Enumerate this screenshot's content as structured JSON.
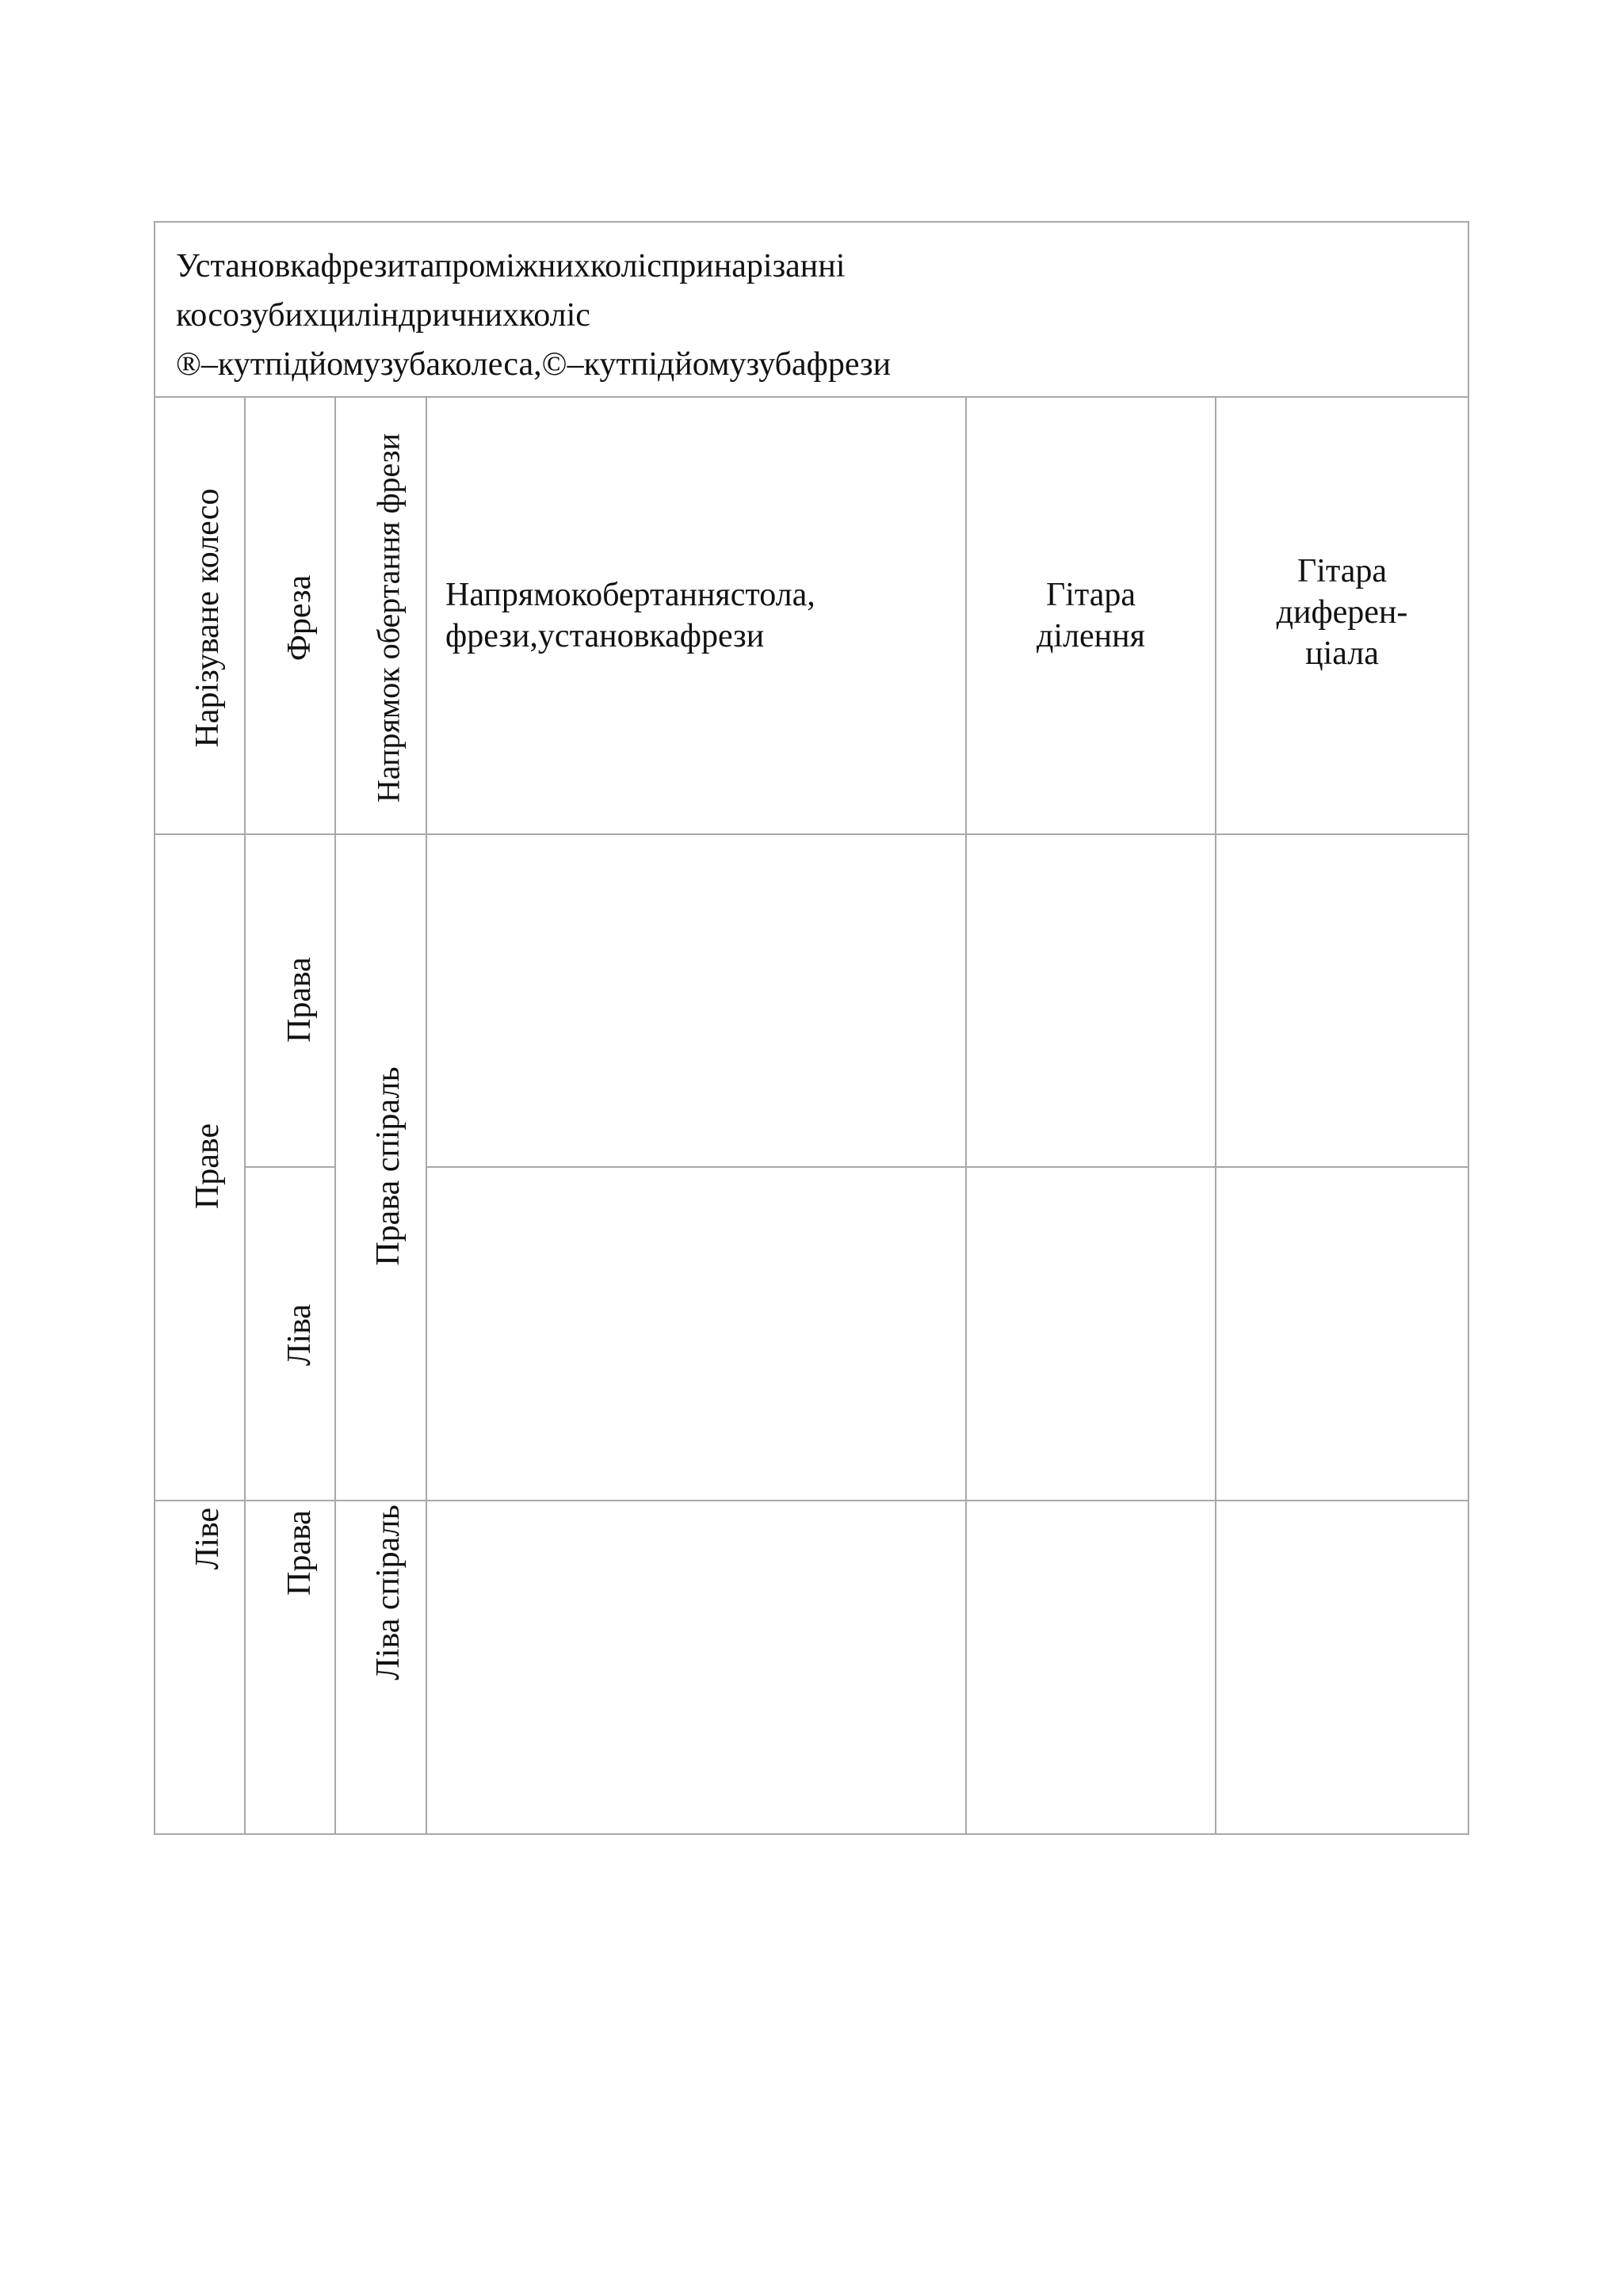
{
  "title": {
    "line1": "Установкафрезитапроміжнихколіспринарізанні",
    "line2": "косозубихциліндричнихколіс",
    "line3": "®–кутпідйомузубаколеса,©–кутпідйомузубафрези"
  },
  "header": {
    "wheel": "Нарізуване колесо",
    "cutter": "Фреза",
    "rotation": "Напрямок обертання фрези",
    "direction_line1": "Напрямокобертаннястола,",
    "direction_line2": "фрези,установкафрези",
    "division_line1": "Гітара",
    "division_line2": "ділення",
    "differential_line1": "Гітара",
    "differential_line2": "диферен-",
    "differential_line3": "ціала"
  },
  "rows": {
    "right_wheel": "Праве",
    "right_cutter_1": "Права",
    "left_cutter_2": "Ліва",
    "right_spiral": "Права спіраль",
    "left_wheel": "Ліве",
    "right_cutter_3": "Права",
    "left_spiral": "Ліва спіраль"
  }
}
